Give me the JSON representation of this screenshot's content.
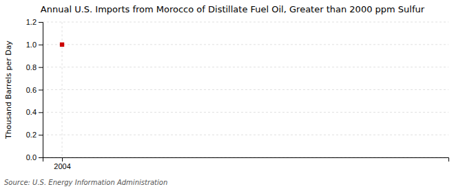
{
  "chart_data": {
    "type": "scatter",
    "title": "Annual U.S. Imports from Morocco of Distillate Fuel Oil, Greater than 2000 ppm Sulfur",
    "ylabel": "Thousand Barrels per Day",
    "source": "Source: U.S. Energy Information Administration",
    "x": [
      2004
    ],
    "values": [
      1.0
    ],
    "color": "#cc0000",
    "marker": "square",
    "xlim": [
      2003.7,
      2010.0
    ],
    "xticks": [
      2004
    ],
    "ylim": [
      0.0,
      1.2
    ],
    "yticks": [
      {
        "value": 0.0,
        "label": "0.0"
      },
      0.2,
      0.4,
      0.6,
      0.8,
      {
        "value": 1.0,
        "label": "1.0"
      },
      1.2
    ],
    "grid": true
  }
}
